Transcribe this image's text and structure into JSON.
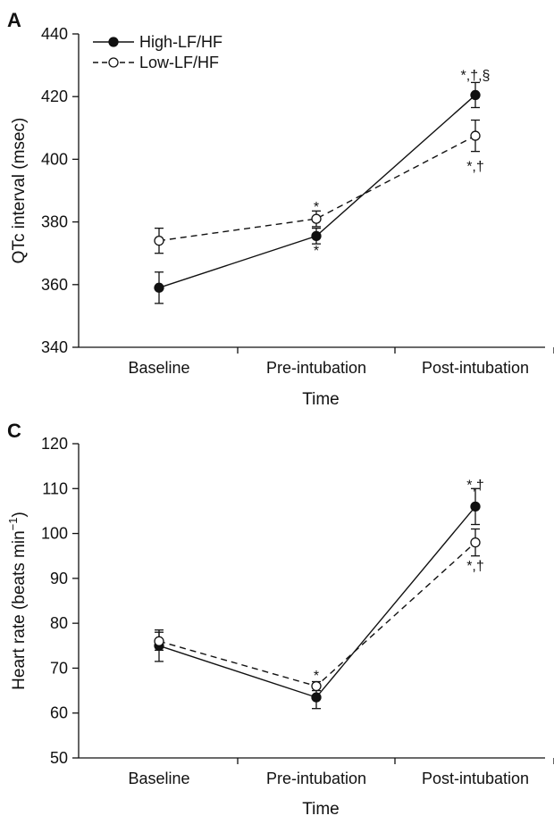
{
  "colors": {
    "ink": "#111111",
    "background": "#ffffff",
    "open_marker_fill": "#ffffff"
  },
  "legend": {
    "placement": "top-left",
    "panel": "A"
  },
  "chart_data": [
    {
      "type": "line",
      "panel_label": "A",
      "xlabel": "Time",
      "ylabel": "QTc interval (msec)",
      "ylabel_superscript": "",
      "ylabel_after": "",
      "categories": [
        "Baseline",
        "Pre-intubation",
        "Post-intubation"
      ],
      "ylim": [
        340,
        440
      ],
      "yticks": [
        340,
        360,
        380,
        400,
        420,
        440
      ],
      "grid": false,
      "series": [
        {
          "name": "High-LF/HF",
          "marker": "filled-circle",
          "line_style": "solid",
          "values": [
            359,
            375.5,
            420.5
          ],
          "errors": [
            5,
            2.5,
            4
          ]
        },
        {
          "name": "Low-LF/HF",
          "marker": "open-circle",
          "line_style": "dashed",
          "values": [
            374,
            381,
            407.5
          ],
          "errors": [
            4,
            2.5,
            5
          ]
        }
      ],
      "annotations": [
        {
          "category": "Pre-intubation",
          "text": "*",
          "position": "above",
          "value": 385
        },
        {
          "category": "Pre-intubation",
          "text": "*",
          "position": "below",
          "value": 371
        },
        {
          "category": "Post-intubation",
          "text": "*,†,§",
          "position": "above",
          "value": 427
        },
        {
          "category": "Post-intubation",
          "text": "*,†",
          "position": "below",
          "value": 398
        }
      ]
    },
    {
      "type": "line",
      "panel_label": "C",
      "xlabel": "Time",
      "ylabel": "Heart rate (beats min",
      "ylabel_superscript": "−1",
      "ylabel_after": ")",
      "categories": [
        "Baseline",
        "Pre-intubation",
        "Post-intubation"
      ],
      "ylim": [
        50,
        120
      ],
      "yticks": [
        50,
        60,
        70,
        80,
        90,
        100,
        110,
        120
      ],
      "grid": false,
      "series": [
        {
          "name": "High-LF/HF",
          "marker": "filled-circle",
          "line_style": "solid",
          "values": [
            75,
            63.5,
            106
          ],
          "errors": [
            3.5,
            2.5,
            4
          ]
        },
        {
          "name": "Low-LF/HF",
          "marker": "open-circle",
          "line_style": "dashed",
          "values": [
            76,
            66,
            98
          ],
          "errors": [
            2,
            1,
            3
          ]
        }
      ],
      "annotations": [
        {
          "category": "Pre-intubation",
          "text": "*",
          "position": "above",
          "value": 68.5
        },
        {
          "category": "Post-intubation",
          "text": "*,†",
          "position": "above",
          "value": 111
        },
        {
          "category": "Post-intubation",
          "text": "*,†",
          "position": "below",
          "value": 93
        }
      ]
    }
  ]
}
